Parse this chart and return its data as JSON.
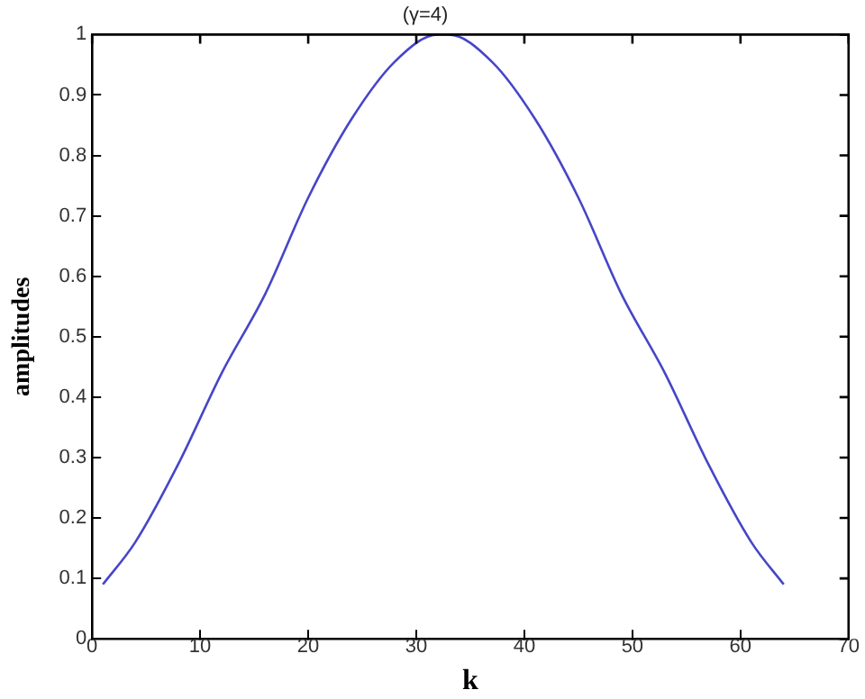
{
  "chart_data": {
    "type": "line",
    "title": "(γ=4)",
    "xlabel": "k",
    "ylabel": "amplitudes",
    "x": [
      1,
      4,
      8,
      12,
      16,
      20,
      24,
      28,
      32,
      33,
      37,
      41,
      45,
      49,
      53,
      57,
      61,
      64
    ],
    "series": [
      {
        "color": "#4646c8",
        "values": [
          0.09,
          0.16,
          0.29,
          0.44,
          0.57,
          0.73,
          0.86,
          0.955,
          1.0,
          1.0,
          0.955,
          0.86,
          0.73,
          0.57,
          0.44,
          0.29,
          0.16,
          0.09
        ]
      }
    ],
    "xlim": [
      0,
      70
    ],
    "xticks": [
      0,
      10,
      20,
      30,
      40,
      50,
      60,
      70
    ],
    "ylim": [
      0,
      1
    ],
    "yticks": [
      0,
      0.1,
      0.2,
      0.3,
      0.4,
      0.5,
      0.6,
      0.7,
      0.8,
      0.9,
      1
    ],
    "grid": false,
    "legend": false,
    "marker": "none",
    "line_style": "solid"
  }
}
